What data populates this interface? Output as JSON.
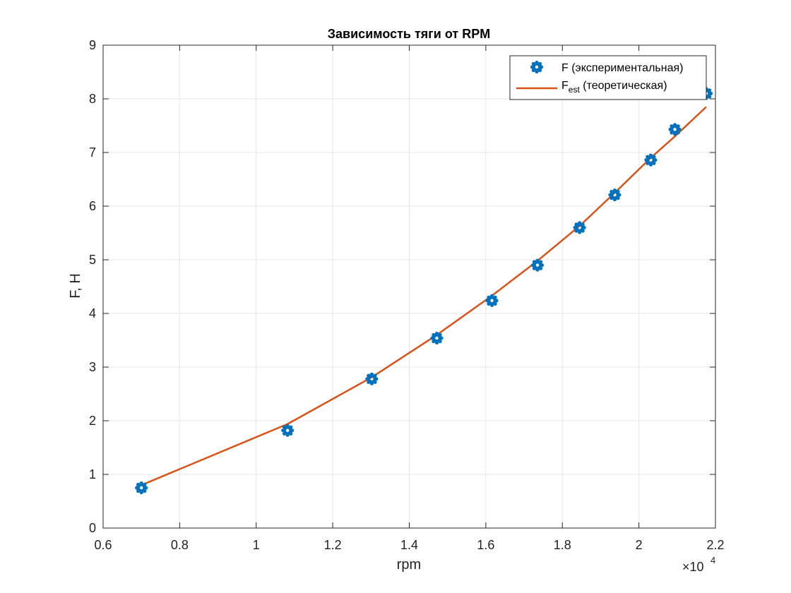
{
  "chart_data": {
    "type": "line",
    "title": "Зависимость тяги от RPM",
    "xlabel": "rpm",
    "ylabel": "F, H",
    "x_multiplier_base": "×10",
    "x_multiplier_exp": "4",
    "xlim": [
      0.6,
      2.2
    ],
    "ylim": [
      0,
      9
    ],
    "x_ticks": [
      "0.6",
      "0.8",
      "1",
      "1.2",
      "1.4",
      "1.6",
      "1.8",
      "2",
      "2.2"
    ],
    "y_ticks": [
      "0",
      "1",
      "2",
      "3",
      "4",
      "5",
      "6",
      "7",
      "8",
      "9"
    ],
    "grid": true,
    "legend_position": "top-right",
    "series": [
      {
        "name": "F (экспериментальная)",
        "kind": "markers",
        "color": "#0072BD",
        "x": [
          0.7,
          1.082,
          1.302,
          1.472,
          1.616,
          1.735,
          1.845,
          1.937,
          2.031,
          2.094,
          2.176
        ],
        "values": [
          0.75,
          1.82,
          2.78,
          3.54,
          4.24,
          4.9,
          5.6,
          6.21,
          6.86,
          7.43,
          8.1
        ]
      },
      {
        "name_main": "F",
        "name_sub": "est",
        "name_rest": " (теоретическая)",
        "kind": "line",
        "color": "#D95319",
        "x": [
          0.7,
          1.082,
          1.302,
          1.472,
          1.616,
          1.735,
          1.845,
          1.937,
          2.031,
          2.094,
          2.176
        ],
        "values": [
          0.8,
          1.94,
          2.81,
          3.6,
          4.33,
          4.98,
          5.63,
          6.25,
          6.9,
          7.3,
          7.85
        ]
      }
    ]
  }
}
